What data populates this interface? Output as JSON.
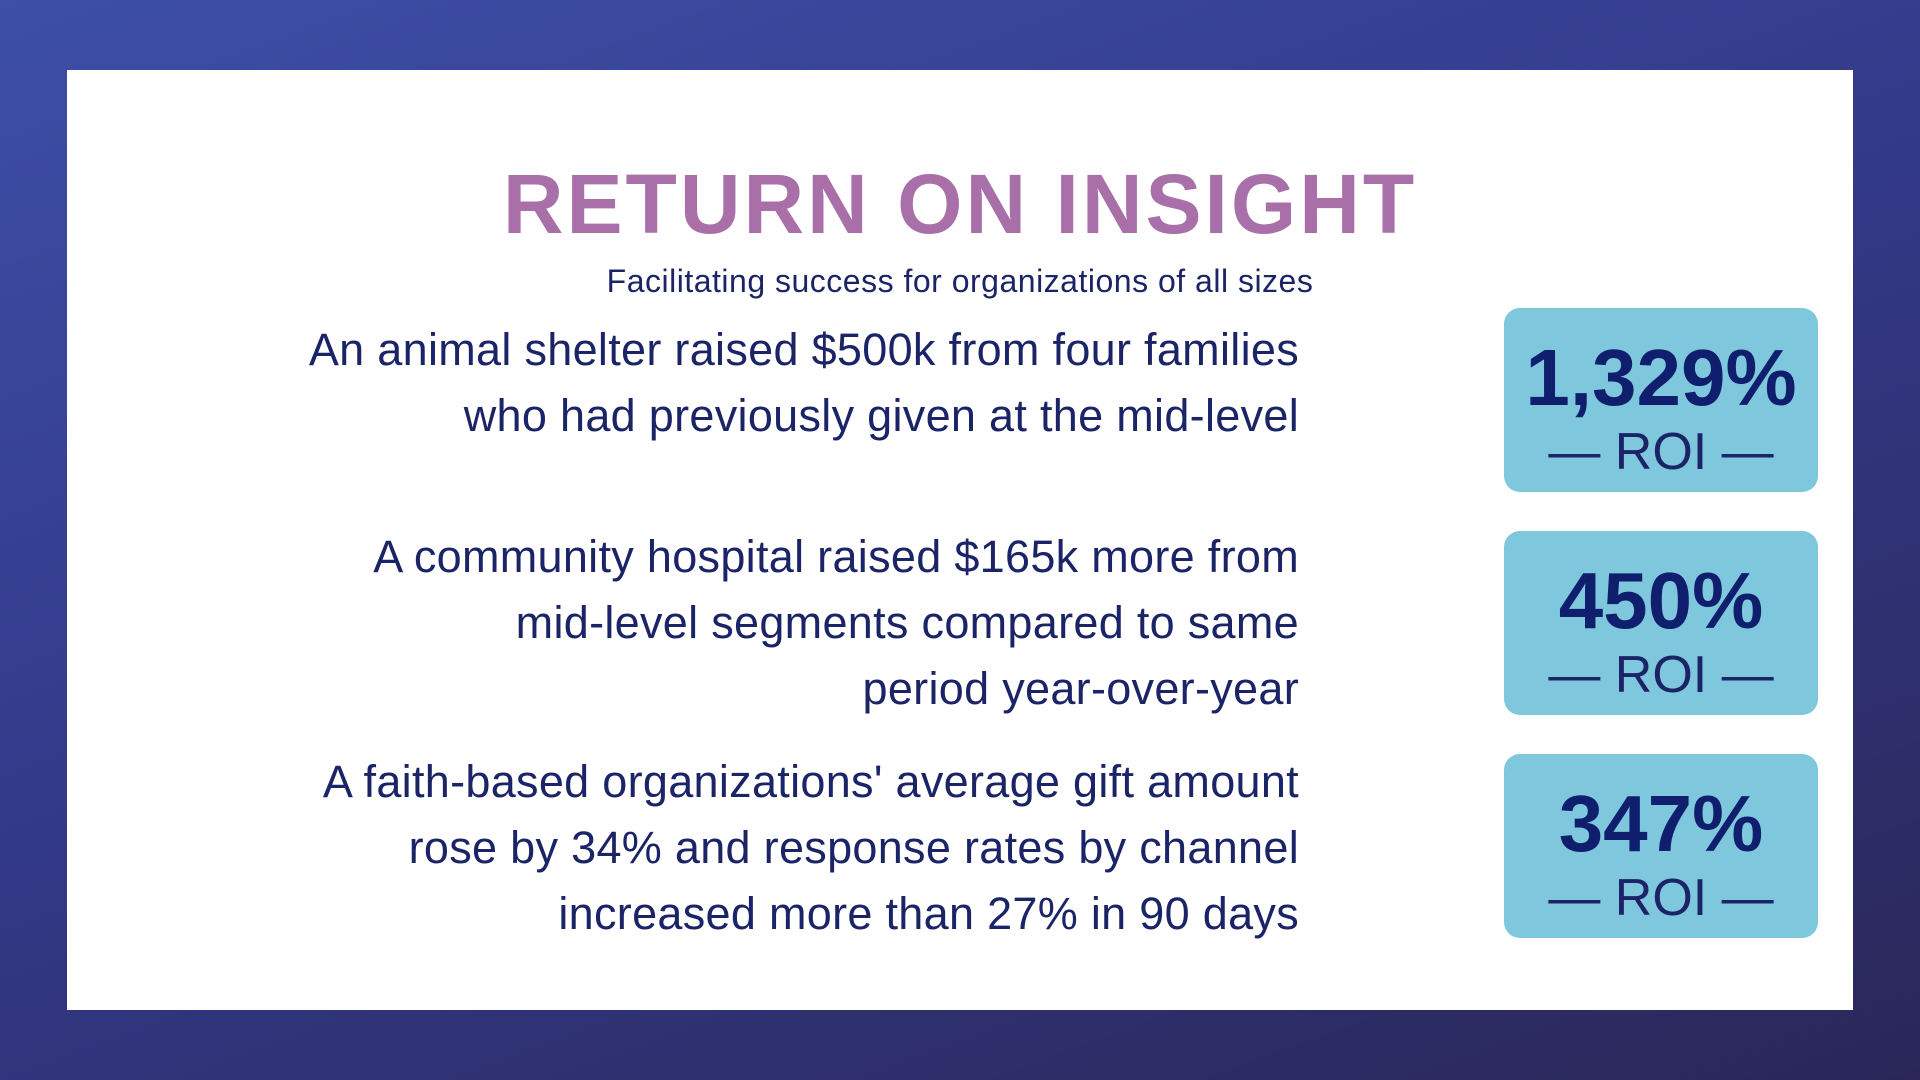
{
  "header": {
    "title": "RETURN ON INSIGHT",
    "subtitle": "Facilitating success for organizations of all sizes"
  },
  "stats": [
    {
      "lines": [
        "An animal shelter raised $500k from four families",
        "who had previously given at the mid-level"
      ],
      "roi_value": "1,329%",
      "roi_label": "— ROI —"
    },
    {
      "lines": [
        "A community hospital raised $165k more from",
        "mid-level segments compared to same",
        "period year-over-year"
      ],
      "roi_value": "450%",
      "roi_label": "— ROI —"
    },
    {
      "lines": [
        "A faith-based organizations' average gift amount",
        "rose by 34% and response rates by channel",
        "increased more than 27% in 90 days"
      ],
      "roi_value": "347%",
      "roi_label": "— ROI —"
    }
  ],
  "colors": {
    "title": "#a96fa9",
    "text": "#1b2466",
    "roi_box": "#7ec7dd",
    "background": "#333a8a"
  }
}
